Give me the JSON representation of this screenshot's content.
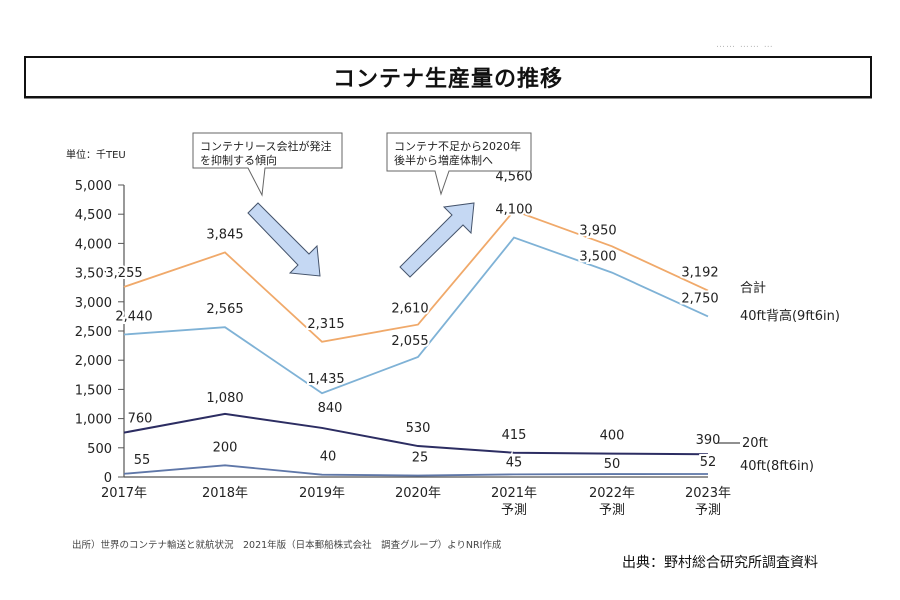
{
  "header_faint_text": "…… …… …",
  "title": "コンテナ生産量の推移",
  "chart_data": {
    "type": "line",
    "title": "コンテナ生産量の推移",
    "unit_label": "単位：千TEU",
    "xlabel": "",
    "ylabel": "千TEU",
    "ylim": [
      0,
      5000
    ],
    "yticks": [
      0,
      500,
      1000,
      1500,
      2000,
      2500,
      3000,
      3500,
      4000,
      4500,
      5000
    ],
    "ytick_labels": [
      "0",
      "500",
      "1,000",
      "1,500",
      "2,000",
      "2,500",
      "3,000",
      "3,500",
      "4,000",
      "4,500",
      "5,000"
    ],
    "categories": [
      "2017年",
      "2018年",
      "2019年",
      "2020年",
      "2021年\n予測",
      "2022年\n予測",
      "2023年\n予測"
    ],
    "category_lines": [
      [
        "2017年"
      ],
      [
        "2018年"
      ],
      [
        "2019年"
      ],
      [
        "2020年"
      ],
      [
        "2021年",
        "予測"
      ],
      [
        "2022年",
        "予測"
      ],
      [
        "2023年",
        "予測"
      ]
    ],
    "grid": false,
    "legend_placement": "right (inline series labels)",
    "series": [
      {
        "name": "合計",
        "color": "#f0a96a",
        "values": [
          3255,
          3845,
          2315,
          2610,
          4560,
          3950,
          3192
        ],
        "labels": [
          "3,255",
          "3,845",
          "2,315",
          "2,610",
          "4,560",
          "3,950",
          "3,192"
        ]
      },
      {
        "name": "40ft背高(9ft6in)",
        "color": "#7fb2d6",
        "values": [
          2440,
          2565,
          1435,
          2055,
          4100,
          3500,
          2750
        ],
        "labels": [
          "2,440",
          "2,565",
          "1,435",
          "2,055",
          "4,100",
          "3,500",
          "2,750"
        ]
      },
      {
        "name": "20ft",
        "color": "#2c2d62",
        "values": [
          760,
          1080,
          840,
          530,
          415,
          400,
          390
        ],
        "labels": [
          "760",
          "1,080",
          "840",
          "530",
          "415",
          "400",
          "390"
        ]
      },
      {
        "name": "40ft(8ft6in)",
        "color": "#5f77a8",
        "values": [
          55,
          200,
          40,
          25,
          45,
          50,
          52
        ],
        "labels": [
          "55",
          "200",
          "40",
          "25",
          "45",
          "50",
          "52"
        ]
      }
    ],
    "annotations": [
      {
        "text_lines": [
          "コンテナリース会社が発注",
          "を抑制する傾向"
        ],
        "arrow": "down",
        "arrow_color": "#c5d8f3"
      },
      {
        "text_lines": [
          "コンテナ不足から2020年",
          "後半から増産体制へ"
        ],
        "arrow": "up",
        "arrow_color": "#c5d8f3"
      }
    ]
  },
  "footer": {
    "source_note": "出所）世界のコンテナ輸送と就航状況　2021年版（日本郵船株式会社　調査グループ）よりNRI作成",
    "credit": "出典：野村総合研究所調査資料"
  }
}
